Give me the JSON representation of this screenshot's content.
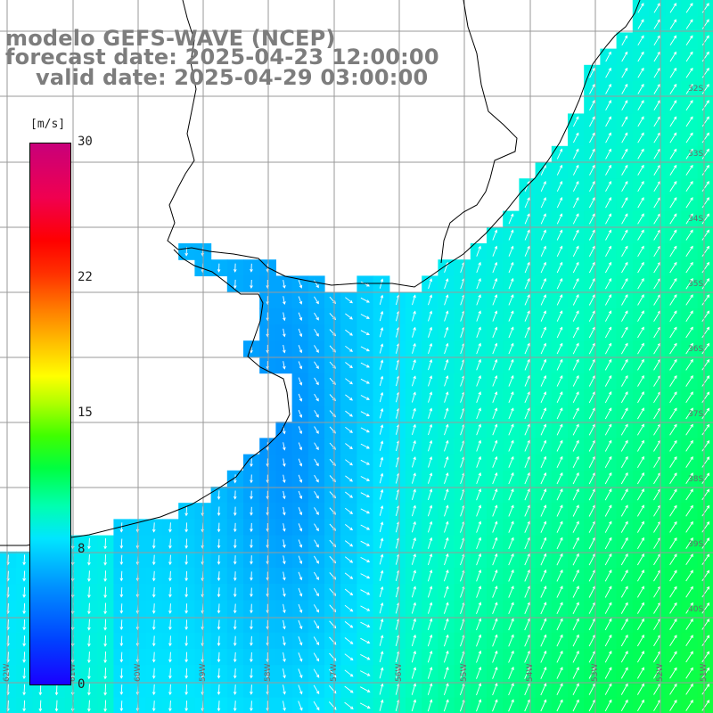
{
  "title": {
    "line1": "modelo GEFS-WAVE (NCEP)",
    "line2": "forecast date: 2025-04-23 12:00:00",
    "line3": "valid date: 2025-04-29 03:00:00"
  },
  "colorbar": {
    "unit": "[m/s]",
    "ticks": [
      "30",
      "22",
      "15",
      "8",
      "0"
    ],
    "range": [
      0,
      30
    ],
    "colors": [
      "#1a00ff",
      "#0090ff",
      "#00e6ff",
      "#00ff40",
      "#ffff00",
      "#ff8000",
      "#ff0000",
      "#c8007a"
    ]
  },
  "map": {
    "lat_labels": [
      "32S",
      "33S",
      "34S",
      "35S",
      "36S",
      "37S",
      "38S",
      "39S",
      "40S"
    ],
    "lon_labels": [
      "62W",
      "61W",
      "60W",
      "59W",
      "58W",
      "57W",
      "56W",
      "55W",
      "54W",
      "53W",
      "52W",
      "51W"
    ],
    "field": "wind speed [m/s]",
    "land_color": "#ffffff",
    "coastline_color": "#000000",
    "grid_color": "#999999"
  }
}
